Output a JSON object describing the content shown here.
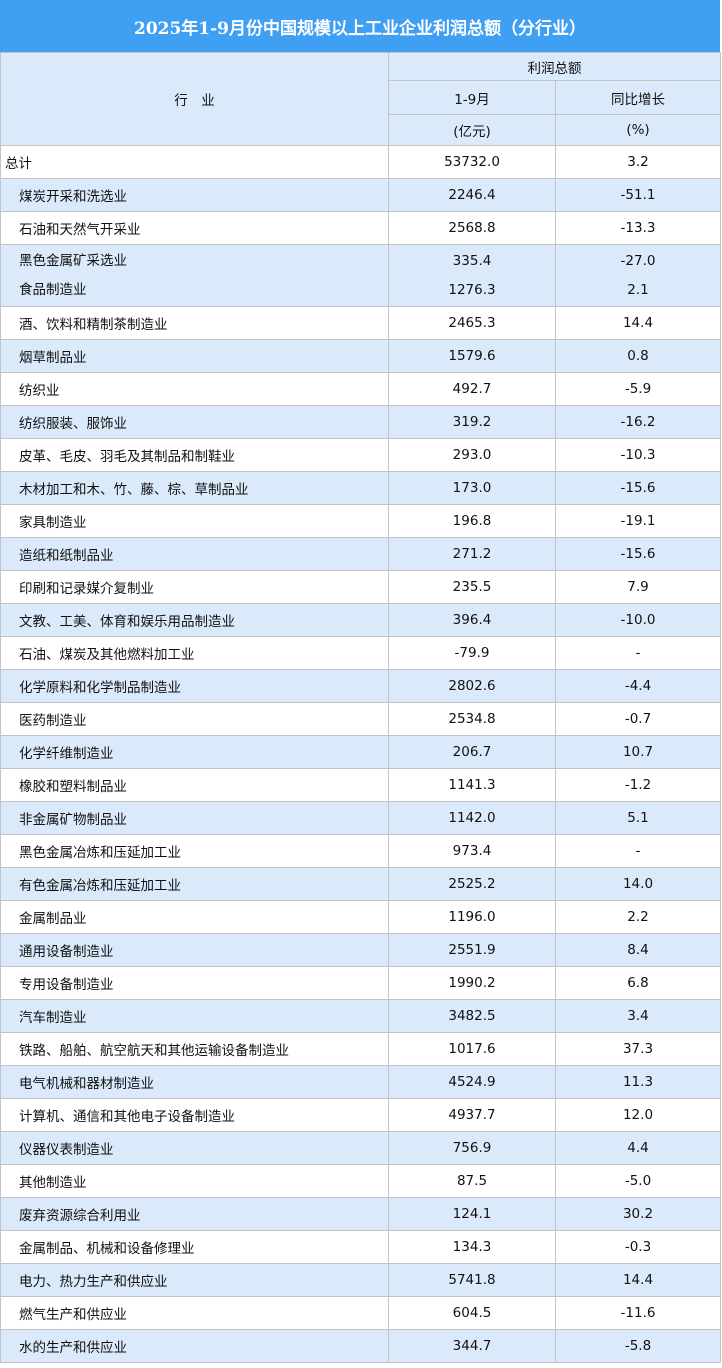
{
  "title": "2025年1-9月份中国规模以上工业企业利润总额（分行业）",
  "colors": {
    "title_bg": "#3f9ff3",
    "stripe": "#dbeafb",
    "border": "#c4c4c4"
  },
  "header": {
    "industry": "行　业",
    "group": "利润总额",
    "col1": "1-9月",
    "col1_unit": "(亿元)",
    "col2": "同比增长",
    "col2_unit": "(%)"
  },
  "chart_data": {
    "type": "table",
    "title": "2025年1-9月份中国规模以上工业企业利润总额（分行业）",
    "columns": [
      "行　业",
      "1-9月 (亿元)",
      "同比增长 (%)"
    ],
    "rows": [
      {
        "name": "总计",
        "profit": "53732.0",
        "growth": "3.2"
      },
      {
        "name": "煤炭开采和洗选业",
        "profit": "2246.4",
        "growth": "-51.1"
      },
      {
        "name": "石油和天然气开采业",
        "profit": "2568.8",
        "growth": "-13.3"
      },
      {
        "name": "黑色金属矿采选业",
        "profit": "335.4",
        "growth": "-27.0"
      },
      {
        "name": "食品制造业",
        "profit": "1276.3",
        "growth": "2.1"
      },
      {
        "name": "酒、饮料和精制茶制造业",
        "profit": "2465.3",
        "growth": "14.4"
      },
      {
        "name": "烟草制品业",
        "profit": "1579.6",
        "growth": "0.8"
      },
      {
        "name": "纺织业",
        "profit": "492.7",
        "growth": "-5.9"
      },
      {
        "name": "纺织服装、服饰业",
        "profit": "319.2",
        "growth": "-16.2"
      },
      {
        "name": "皮革、毛皮、羽毛及其制品和制鞋业",
        "profit": "293.0",
        "growth": "-10.3"
      },
      {
        "name": "木材加工和木、竹、藤、棕、草制品业",
        "profit": "173.0",
        "growth": "-15.6"
      },
      {
        "name": "家具制造业",
        "profit": "196.8",
        "growth": "-19.1"
      },
      {
        "name": "造纸和纸制品业",
        "profit": "271.2",
        "growth": "-15.6"
      },
      {
        "name": "印刷和记录媒介复制业",
        "profit": "235.5",
        "growth": "7.9"
      },
      {
        "name": "文教、工美、体育和娱乐用品制造业",
        "profit": "396.4",
        "growth": "-10.0"
      },
      {
        "name": "石油、煤炭及其他燃料加工业",
        "profit": "-79.9",
        "growth": "-"
      },
      {
        "name": "化学原料和化学制品制造业",
        "profit": "2802.6",
        "growth": "-4.4"
      },
      {
        "name": "医药制造业",
        "profit": "2534.8",
        "growth": "-0.7"
      },
      {
        "name": "化学纤维制造业",
        "profit": "206.7",
        "growth": "10.7"
      },
      {
        "name": "橡胶和塑料制品业",
        "profit": "1141.3",
        "growth": "-1.2"
      },
      {
        "name": "非金属矿物制品业",
        "profit": "1142.0",
        "growth": "5.1"
      },
      {
        "name": "黑色金属冶炼和压延加工业",
        "profit": "973.4",
        "growth": "-"
      },
      {
        "name": "有色金属冶炼和压延加工业",
        "profit": "2525.2",
        "growth": "14.0"
      },
      {
        "name": "金属制品业",
        "profit": "1196.0",
        "growth": "2.2"
      },
      {
        "name": "通用设备制造业",
        "profit": "2551.9",
        "growth": "8.4"
      },
      {
        "name": "专用设备制造业",
        "profit": "1990.2",
        "growth": "6.8"
      },
      {
        "name": "汽车制造业",
        "profit": "3482.5",
        "growth": "3.4"
      },
      {
        "name": "铁路、船舶、航空航天和其他运输设备制造业",
        "profit": "1017.6",
        "growth": "37.3"
      },
      {
        "name": "电气机械和器材制造业",
        "profit": "4524.9",
        "growth": "11.3"
      },
      {
        "name": "计算机、通信和其他电子设备制造业",
        "profit": "4937.7",
        "growth": "12.0"
      },
      {
        "name": "仪器仪表制造业",
        "profit": "756.9",
        "growth": "4.4"
      },
      {
        "name": "其他制造业",
        "profit": "87.5",
        "growth": "-5.0"
      },
      {
        "name": "废弃资源综合利用业",
        "profit": "124.1",
        "growth": "30.2"
      },
      {
        "name": "金属制品、机械和设备修理业",
        "profit": "134.3",
        "growth": "-0.3"
      },
      {
        "name": "电力、热力生产和供应业",
        "profit": "5741.8",
        "growth": "14.4"
      },
      {
        "name": "燃气生产和供应业",
        "profit": "604.5",
        "growth": "-11.6"
      },
      {
        "name": "水的生产和供应业",
        "profit": "344.7",
        "growth": "-5.8"
      }
    ]
  }
}
